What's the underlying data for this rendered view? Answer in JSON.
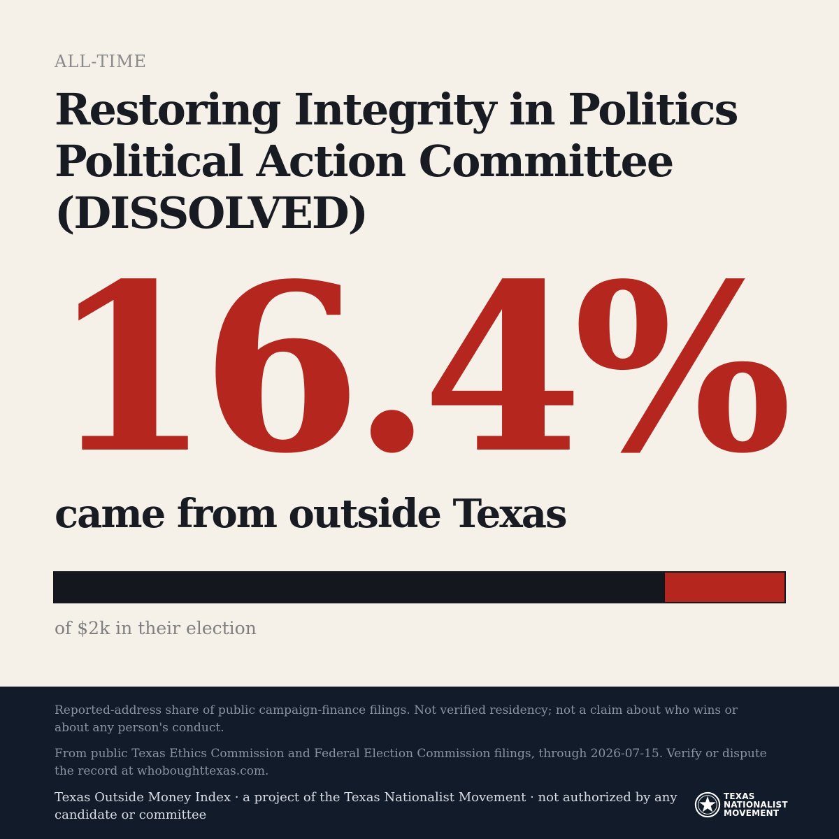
{
  "header": {
    "period": "ALL-TIME",
    "title_lines": [
      "Restoring Integrity in Politics",
      "Political Action Committee",
      "(DISSOLVED)"
    ]
  },
  "stat": {
    "percent_text": "16.4%",
    "share": 0.164,
    "caption": "came from outside Texas"
  },
  "bar": {
    "in_state_color": "#14171d",
    "out_of_state_color": "#b4261e"
  },
  "total": {
    "text": "of $2k in their election"
  },
  "footer": {
    "note1": "Reported-address share of public campaign-finance filings. Not verified residency; not a claim about who wins or about any person's conduct.",
    "note2": "From public Texas Ethics Commission and Federal Election Commission filings, through 2026-07-15. Verify or dispute the record at whoboughttexas.com.",
    "credit": "Texas Outside Money Index · a project of the Texas Nationalist Movement · not authorized by any candidate or committee",
    "logo": {
      "icon": "star-seal-icon",
      "lines": [
        "TEXAS",
        "NATIONALIST",
        "MOVEMENT"
      ]
    }
  },
  "colors": {
    "background": "#f5f0e8",
    "accent": "#b4261e",
    "ink": "#181b22",
    "footer_bg": "#121b29"
  }
}
